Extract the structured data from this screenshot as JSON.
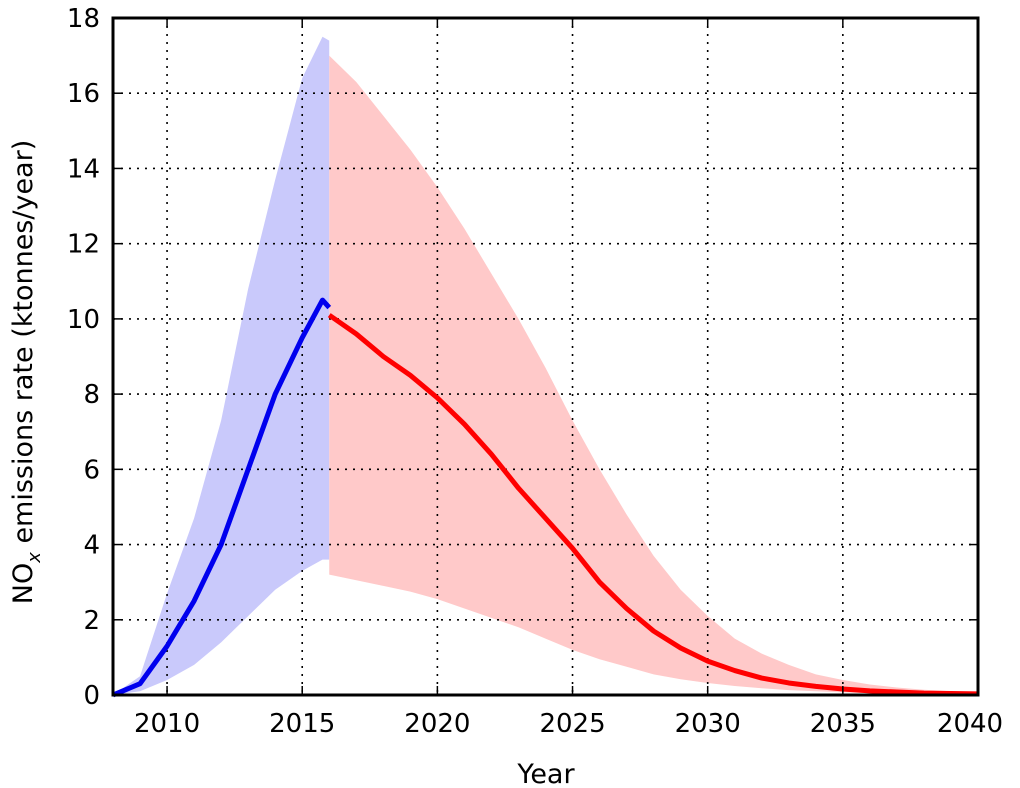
{
  "chart_data": {
    "type": "line",
    "xlabel": "Year",
    "ylabel_main": "NO",
    "ylabel_sub": "x",
    "ylabel_rest": "  emissions rate (ktonnes/year)",
    "xlim": [
      2008,
      2040
    ],
    "ylim": [
      0,
      18
    ],
    "x_ticks": [
      2010,
      2015,
      2020,
      2025,
      2030,
      2035,
      2040
    ],
    "y_ticks": [
      0,
      2,
      4,
      6,
      8,
      10,
      12,
      14,
      16,
      18
    ],
    "grid": true,
    "grid_style": "dotted",
    "colors": {
      "historical_line": "#0000ee",
      "historical_band": "#c9c9fb",
      "projection_line": "#ff0000",
      "projection_band": "#ffc9c9"
    },
    "series": [
      {
        "x": [
          2008,
          2009,
          2010,
          2011,
          2012,
          2013,
          2014,
          2015,
          2015.75,
          2016
        ],
        "y": [
          0,
          0.3,
          1.3,
          2.5,
          4.0,
          6.0,
          8.0,
          9.5,
          10.5,
          10.3
        ],
        "lower": [
          0,
          0.1,
          0.4,
          0.8,
          1.4,
          2.1,
          2.8,
          3.3,
          3.6,
          3.6
        ],
        "upper": [
          0,
          0.5,
          2.7,
          4.7,
          7.3,
          10.8,
          13.7,
          16.4,
          17.5,
          17.4
        ]
      },
      {
        "x": [
          2016,
          2017,
          2018,
          2019,
          2020,
          2021,
          2022,
          2023,
          2024,
          2025,
          2026,
          2027,
          2028,
          2029,
          2030,
          2031,
          2032,
          2033,
          2034,
          2035,
          2036,
          2037,
          2038,
          2039,
          2040
        ],
        "y": [
          10.1,
          9.6,
          9.0,
          8.5,
          7.9,
          7.2,
          6.4,
          5.5,
          4.7,
          3.9,
          3.0,
          2.3,
          1.7,
          1.25,
          0.9,
          0.65,
          0.45,
          0.32,
          0.23,
          0.16,
          0.11,
          0.08,
          0.05,
          0.04,
          0.03
        ],
        "lower": [
          3.2,
          3.05,
          2.9,
          2.75,
          2.55,
          2.3,
          2.05,
          1.8,
          1.5,
          1.2,
          0.95,
          0.75,
          0.55,
          0.42,
          0.32,
          0.24,
          0.18,
          0.13,
          0.1,
          0.07,
          0.05,
          0.04,
          0.03,
          0.02,
          0.01
        ],
        "upper": [
          17.0,
          16.3,
          15.4,
          14.5,
          13.5,
          12.4,
          11.2,
          10.0,
          8.7,
          7.3,
          6.0,
          4.8,
          3.7,
          2.8,
          2.1,
          1.5,
          1.1,
          0.8,
          0.55,
          0.4,
          0.28,
          0.2,
          0.14,
          0.1,
          0.07
        ]
      }
    ]
  }
}
